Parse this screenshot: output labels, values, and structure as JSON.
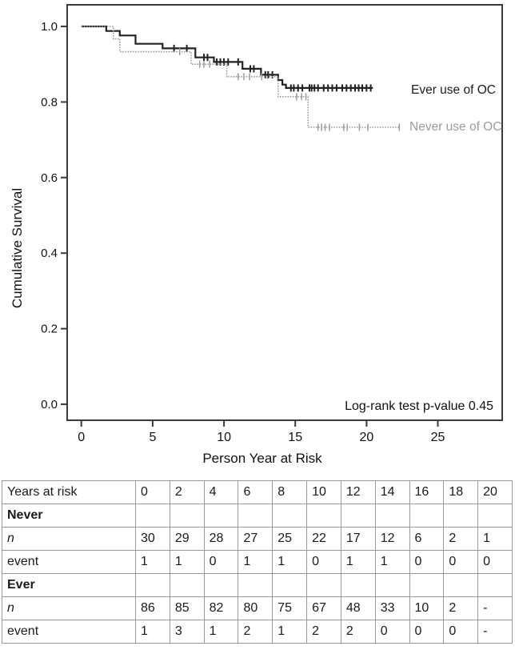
{
  "chart_data": {
    "type": "line",
    "chart_kind": "kaplan_meier_step_plot",
    "title": "",
    "xlabel": "Person Year at Risk",
    "ylabel": "Cumulative Survival",
    "x_ticks": [
      "0",
      "5",
      "10",
      "15",
      "20",
      "25"
    ],
    "y_ticks": [
      "0.0",
      "0.2",
      "0.4",
      "0.6",
      "0.8",
      "1.0"
    ],
    "xlim": [
      0,
      25
    ],
    "ylim": [
      0.0,
      1.0
    ],
    "grid": false,
    "legend_position": "labels-at-curve-ends",
    "annotation": "Log-rank test p-value 0.45",
    "axis_color": "#3a3a3a",
    "series": [
      {
        "name": "Ever use of OC",
        "color": "#222222",
        "line_style": "solid",
        "steps": [
          [
            0,
            1.0
          ],
          [
            1.75,
            0.988
          ],
          [
            2.7,
            0.976
          ],
          [
            3.8,
            0.954
          ],
          [
            5.7,
            0.942
          ],
          [
            8.0,
            0.918
          ],
          [
            9.3,
            0.906
          ],
          [
            11.3,
            0.888
          ],
          [
            12.6,
            0.872
          ],
          [
            13.8,
            0.858
          ],
          [
            14.1,
            0.846
          ],
          [
            14.35,
            0.837
          ],
          [
            20.45,
            0.837
          ]
        ],
        "censor_times": [
          6.5,
          7.4,
          8.6,
          8.85,
          9.5,
          9.75,
          10.0,
          10.3,
          11.0,
          11.85,
          12.1,
          12.9,
          13.1,
          13.4,
          14.7,
          14.9,
          15.2,
          15.5,
          16.0,
          16.15,
          16.35,
          16.6,
          17.0,
          17.3,
          17.6,
          17.9,
          18.3,
          18.6,
          18.9,
          19.2,
          19.45,
          19.7,
          20.0,
          20.3
        ]
      },
      {
        "name": "Never use of OC",
        "color": "#9c9c9c",
        "line_style": "dotted",
        "steps": [
          [
            0,
            1.0
          ],
          [
            2.25,
            0.967
          ],
          [
            2.7,
            0.933
          ],
          [
            7.7,
            0.9
          ],
          [
            10.2,
            0.867
          ],
          [
            13.8,
            0.814
          ],
          [
            15.9,
            0.733
          ],
          [
            22.35,
            0.733
          ]
        ],
        "censor_times": [
          6.9,
          8.3,
          8.6,
          9.0,
          11.0,
          11.4,
          11.8,
          12.65,
          15.1,
          15.45,
          15.75,
          16.6,
          16.85,
          17.1,
          17.4,
          18.4,
          18.65,
          19.5,
          20.1,
          22.3
        ]
      }
    ]
  },
  "risk_table": {
    "header_label": "Years at risk",
    "header_cols": [
      "0",
      "2",
      "4",
      "6",
      "8",
      "10",
      "12",
      "14",
      "16",
      "18",
      "20"
    ],
    "rows": [
      {
        "label": "Never",
        "style": "bold",
        "cells": [
          "",
          "",
          "",
          "",
          "",
          "",
          "",
          "",
          "",
          "",
          ""
        ]
      },
      {
        "label": "n",
        "style": "italic",
        "cells": [
          "30",
          "29",
          "28",
          "27",
          "25",
          "22",
          "17",
          "12",
          "6",
          "2",
          "1"
        ]
      },
      {
        "label": "event",
        "style": "normal",
        "cells": [
          "1",
          "1",
          "0",
          "1",
          "1",
          "0",
          "1",
          "1",
          "0",
          "0",
          "0"
        ]
      },
      {
        "label": "Ever",
        "style": "bold",
        "cells": [
          "",
          "",
          "",
          "",
          "",
          "",
          "",
          "",
          "",
          "",
          ""
        ]
      },
      {
        "label": "n",
        "style": "italic",
        "cells": [
          "86",
          "85",
          "82",
          "80",
          "75",
          "67",
          "48",
          "33",
          "10",
          "2",
          "-"
        ]
      },
      {
        "label": "event",
        "style": "normal",
        "cells": [
          "1",
          "3",
          "1",
          "2",
          "1",
          "2",
          "2",
          "0",
          "0",
          "0",
          "-"
        ]
      }
    ]
  }
}
